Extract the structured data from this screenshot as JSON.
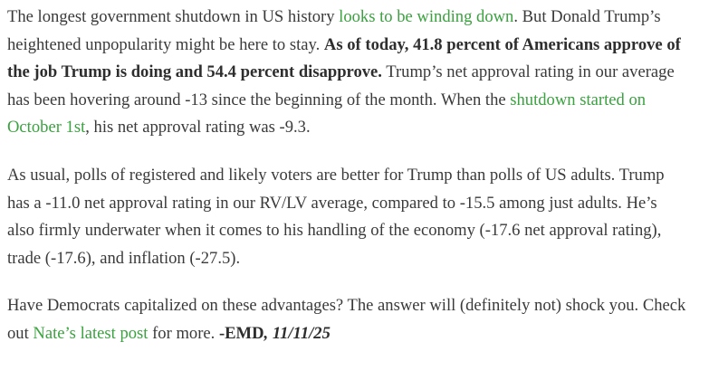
{
  "colors": {
    "text": "#3a3a3a",
    "link": "#3aa23f",
    "bold_text": "#2e2e2e",
    "background": "#ffffff"
  },
  "paragraphs": {
    "p1": {
      "t1": "The longest government shutdown in US history ",
      "link1": "looks to be winding down",
      "t2": ". But Donald Trump’s heightened unpopularity might be here to stay. ",
      "bold": "As of today, 41.8 percent of Americans approve of the job Trump is doing and 54.4 percent disapprove.",
      "t3": " Trump’s net approval rating in our average has been hovering around -13 since the beginning of the month. When the ",
      "link2": "shutdown started on October 1st",
      "t4": ", his net approval rating was -9.3."
    },
    "p2": {
      "text": "As usual, polls of registered and likely voters are better for Trump than polls of US adults. Trump has a -11.0 net approval rating in our RV/LV average, compared to -15.5 among just adults. He’s also firmly underwater when it comes to his handling of the economy (-17.6 net approval rating), trade (-17.6), and inflation (-27.5)."
    },
    "p3": {
      "t1": "Have Democrats capitalized on these advantages? The answer will (definitely not) shock you. Check out ",
      "link": "Nate’s latest post",
      "t2": " for more. ",
      "signature": "-EMD",
      "date": ", 11/11/25"
    }
  }
}
